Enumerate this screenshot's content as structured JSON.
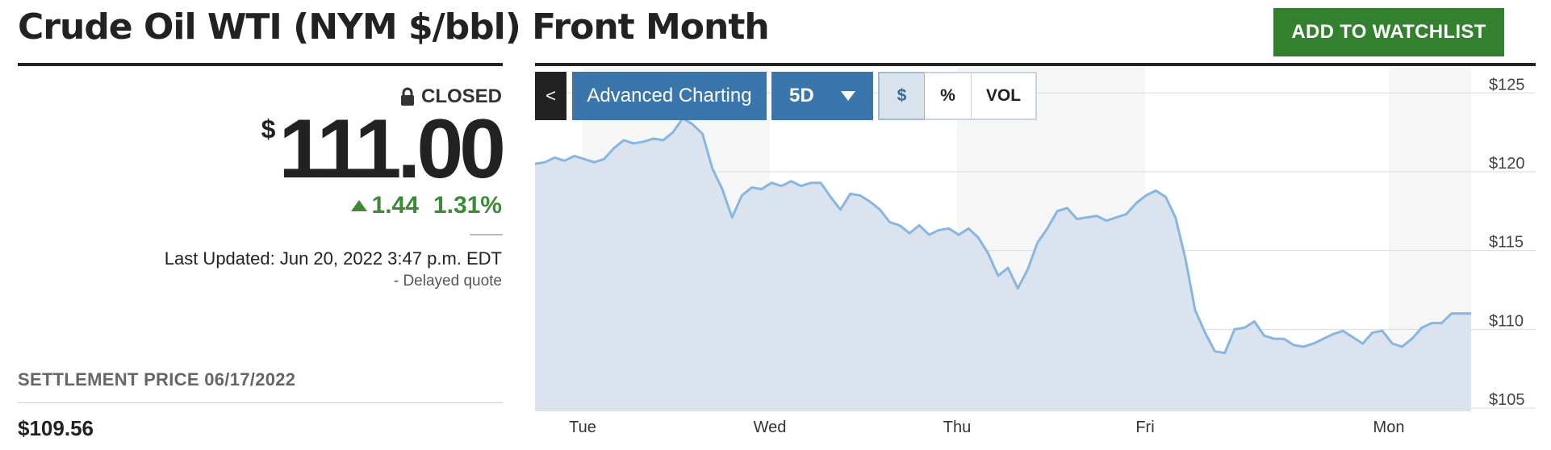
{
  "header": {
    "title": "Crude Oil WTI (NYM $/bbl) Front Month",
    "watchlist_button": "ADD TO WATCHLIST"
  },
  "quote": {
    "status": "CLOSED",
    "currency_symbol": "$",
    "price": "111.00",
    "change": "1.44",
    "change_percent": "1.31%",
    "last_updated": "Last Updated: Jun 20, 2022 3:47 p.m. EDT",
    "delayed_note": "-  Delayed quote"
  },
  "settlement": {
    "label": "SETTLEMENT PRICE 06/17/2022",
    "value": "$109.56"
  },
  "chart_controls": {
    "back": "<",
    "advanced": "Advanced Charting",
    "range": "5D",
    "mode_dollar": "$",
    "mode_percent": "%",
    "mode_volume": "VOL"
  },
  "colors": {
    "accent_green": "#33802f",
    "accent_blue": "#3a76ab",
    "line_blue": "#86b6e1"
  },
  "chart_data": {
    "type": "area",
    "title": "",
    "xlabel": "",
    "ylabel": "",
    "ylim": [
      104.8,
      126.6
    ],
    "x_ticks": [
      "Tue",
      "Wed",
      "Thu",
      "Fri",
      "Mon"
    ],
    "y_ticks": [
      "$125",
      "$120",
      "$115",
      "$110",
      "$105"
    ],
    "y_tick_values": [
      125,
      120,
      115,
      110,
      105
    ],
    "grid": true,
    "series": [
      {
        "values": [
          120.5,
          120.6,
          120.9,
          120.7,
          121.0,
          120.8,
          120.6,
          120.8,
          121.5,
          122.0,
          121.8,
          121.9,
          122.1,
          122.0,
          122.5,
          123.4,
          123.0,
          122.4,
          120.2,
          118.9,
          117.1,
          118.5,
          119.0,
          118.9,
          119.3,
          119.1,
          119.4,
          119.1,
          119.3,
          119.3,
          118.4,
          117.6,
          118.6,
          118.5,
          118.1,
          117.6,
          116.8,
          116.6,
          116.1,
          116.6,
          116.0,
          116.3,
          116.4,
          116.0,
          116.4,
          115.8,
          114.8,
          113.4,
          113.9,
          112.6,
          113.8,
          115.5,
          116.4,
          117.5,
          117.7,
          117.0,
          117.1,
          117.2,
          116.9,
          117.1,
          117.3,
          118.0,
          118.5,
          118.8,
          118.4,
          117.1,
          114.5,
          111.2,
          109.8,
          108.6,
          108.5,
          110.0,
          110.1,
          110.5,
          109.6,
          109.4,
          109.4,
          109.0,
          108.9,
          109.1,
          109.4,
          109.7,
          109.9,
          109.5,
          109.1,
          109.8,
          109.9,
          109.1,
          108.9,
          109.4,
          110.1,
          110.4,
          110.4,
          111.0,
          111.0,
          111.0
        ]
      }
    ]
  }
}
